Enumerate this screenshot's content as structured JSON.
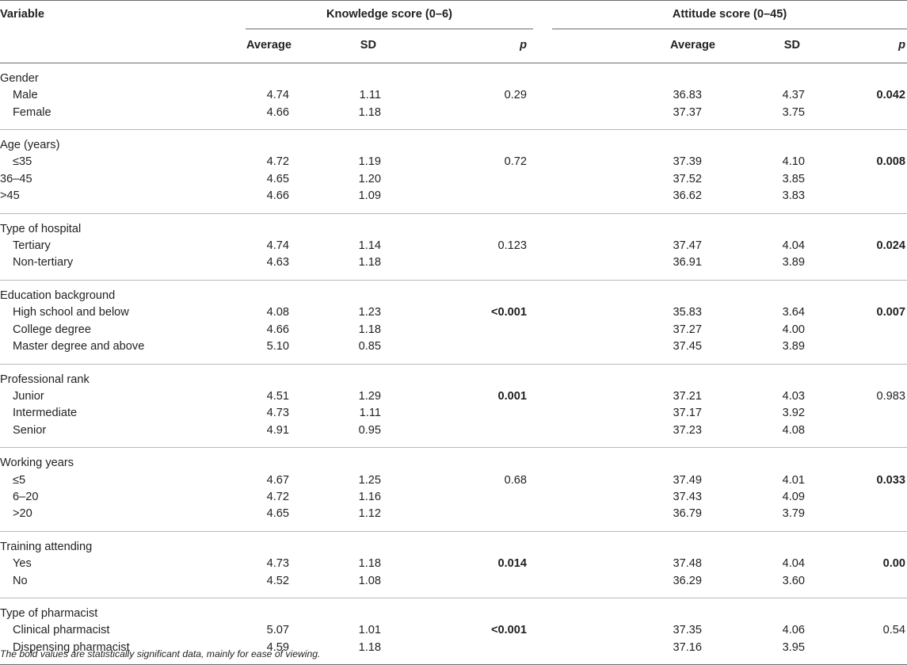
{
  "header": {
    "variable": "Variable",
    "knowledge_group": "Knowledge score (0–6)",
    "attitude_group": "Attitude score (0–45)",
    "average": "Average",
    "sd": "SD",
    "p": "p"
  },
  "groups": [
    {
      "label": "Gender",
      "rows": [
        {
          "label": "Male",
          "indent": true,
          "k_avg": "4.74",
          "k_sd": "1.11",
          "k_p": "0.29",
          "k_p_bold": false,
          "a_avg": "36.83",
          "a_sd": "4.37",
          "a_p": "0.042",
          "a_p_bold": true
        },
        {
          "label": "Female",
          "indent": true,
          "k_avg": "4.66",
          "k_sd": "1.18",
          "k_p": "",
          "k_p_bold": false,
          "a_avg": "37.37",
          "a_sd": "3.75",
          "a_p": "",
          "a_p_bold": false
        }
      ]
    },
    {
      "label": "Age (years)",
      "rows": [
        {
          "label": "≤35",
          "indent": true,
          "k_avg": "4.72",
          "k_sd": "1.19",
          "k_p": "0.72",
          "k_p_bold": false,
          "a_avg": "37.39",
          "a_sd": "4.10",
          "a_p": "0.008",
          "a_p_bold": true
        },
        {
          "label": "36–45",
          "indent": false,
          "k_avg": "4.65",
          "k_sd": "1.20",
          "k_p": "",
          "k_p_bold": false,
          "a_avg": "37.52",
          "a_sd": "3.85",
          "a_p": "",
          "a_p_bold": false
        },
        {
          "label": ">45",
          "indent": false,
          "k_avg": "4.66",
          "k_sd": "1.09",
          "k_p": "",
          "k_p_bold": false,
          "a_avg": "36.62",
          "a_sd": "3.83",
          "a_p": "",
          "a_p_bold": false
        }
      ]
    },
    {
      "label": "Type of hospital",
      "rows": [
        {
          "label": "Tertiary",
          "indent": true,
          "k_avg": "4.74",
          "k_sd": "1.14",
          "k_p": "0.123",
          "k_p_bold": false,
          "a_avg": "37.47",
          "a_sd": "4.04",
          "a_p": "0.024",
          "a_p_bold": true
        },
        {
          "label": "Non-tertiary",
          "indent": true,
          "k_avg": "4.63",
          "k_sd": "1.18",
          "k_p": "",
          "k_p_bold": false,
          "a_avg": "36.91",
          "a_sd": "3.89",
          "a_p": "",
          "a_p_bold": false
        }
      ]
    },
    {
      "label": "Education background",
      "rows": [
        {
          "label": "High school and below",
          "indent": true,
          "k_avg": "4.08",
          "k_sd": "1.23",
          "k_p": "<0.001",
          "k_p_bold": true,
          "a_avg": "35.83",
          "a_sd": "3.64",
          "a_p": "0.007",
          "a_p_bold": true
        },
        {
          "label": "College degree",
          "indent": true,
          "k_avg": "4.66",
          "k_sd": "1.18",
          "k_p": "",
          "k_p_bold": false,
          "a_avg": "37.27",
          "a_sd": "4.00",
          "a_p": "",
          "a_p_bold": false
        },
        {
          "label": "Master degree and above",
          "indent": true,
          "k_avg": "5.10",
          "k_sd": "0.85",
          "k_p": "",
          "k_p_bold": false,
          "a_avg": "37.45",
          "a_sd": "3.89",
          "a_p": "",
          "a_p_bold": false
        }
      ]
    },
    {
      "label": "Professional rank",
      "rows": [
        {
          "label": "Junior",
          "indent": true,
          "k_avg": "4.51",
          "k_sd": "1.29",
          "k_p": "0.001",
          "k_p_bold": true,
          "a_avg": "37.21",
          "a_sd": "4.03",
          "a_p": "0.983",
          "a_p_bold": false
        },
        {
          "label": "Intermediate",
          "indent": true,
          "k_avg": "4.73",
          "k_sd": "1.11",
          "k_p": "",
          "k_p_bold": false,
          "a_avg": "37.17",
          "a_sd": "3.92",
          "a_p": "",
          "a_p_bold": false
        },
        {
          "label": "Senior",
          "indent": true,
          "k_avg": "4.91",
          "k_sd": "0.95",
          "k_p": "",
          "k_p_bold": false,
          "a_avg": "37.23",
          "a_sd": "4.08",
          "a_p": "",
          "a_p_bold": false
        }
      ]
    },
    {
      "label": "Working years",
      "rows": [
        {
          "label": "≤5",
          "indent": true,
          "k_avg": "4.67",
          "k_sd": "1.25",
          "k_p": "0.68",
          "k_p_bold": false,
          "a_avg": "37.49",
          "a_sd": "4.01",
          "a_p": "0.033",
          "a_p_bold": true
        },
        {
          "label": "6–20",
          "indent": true,
          "k_avg": "4.72",
          "k_sd": "1.16",
          "k_p": "",
          "k_p_bold": false,
          "a_avg": "37.43",
          "a_sd": "4.09",
          "a_p": "",
          "a_p_bold": false
        },
        {
          "label": ">20",
          "indent": true,
          "k_avg": "4.65",
          "k_sd": "1.12",
          "k_p": "",
          "k_p_bold": false,
          "a_avg": "36.79",
          "a_sd": "3.79",
          "a_p": "",
          "a_p_bold": false
        }
      ]
    },
    {
      "label": "Training attending",
      "rows": [
        {
          "label": "Yes",
          "indent": true,
          "k_avg": "4.73",
          "k_sd": "1.18",
          "k_p": "0.014",
          "k_p_bold": true,
          "a_avg": "37.48",
          "a_sd": "4.04",
          "a_p": "0.00",
          "a_p_bold": true
        },
        {
          "label": "No",
          "indent": true,
          "k_avg": "4.52",
          "k_sd": "1.08",
          "k_p": "",
          "k_p_bold": false,
          "a_avg": "36.29",
          "a_sd": "3.60",
          "a_p": "",
          "a_p_bold": false
        }
      ]
    },
    {
      "label": "Type of pharmacist",
      "rows": [
        {
          "label": "Clinical pharmacist",
          "indent": true,
          "k_avg": "5.07",
          "k_sd": "1.01",
          "k_p": "<0.001",
          "k_p_bold": true,
          "a_avg": "37.35",
          "a_sd": "4.06",
          "a_p": "0.54",
          "a_p_bold": false
        },
        {
          "label": "Dispensing pharmacist",
          "indent": true,
          "k_avg": "4.59",
          "k_sd": "1.18",
          "k_p": "",
          "k_p_bold": false,
          "a_avg": "37.16",
          "a_sd": "3.95",
          "a_p": "",
          "a_p_bold": false
        }
      ]
    }
  ],
  "footnote": "The bold values are statistically significant data, mainly for ease of viewing."
}
